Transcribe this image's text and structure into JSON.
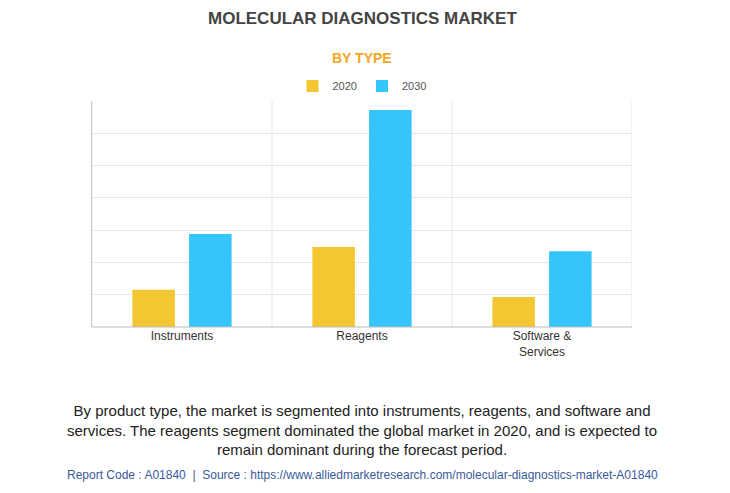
{
  "chart_data": {
    "type": "bar",
    "title": "MOLECULAR DIAGNOSTICS MARKET",
    "subtitle": "BY TYPE",
    "categories": [
      "Instruments",
      "Reagents",
      "Software & Services"
    ],
    "series": [
      {
        "name": "2020",
        "color": "#f4c732",
        "values": [
          1.15,
          2.48,
          0.93
        ]
      },
      {
        "name": "2030",
        "color": "#33c5fb",
        "values": [
          2.88,
          6.72,
          2.35
        ]
      }
    ],
    "ylim": [
      0,
      7
    ],
    "yticks": [
      0,
      1,
      2,
      3,
      4,
      5,
      6,
      7
    ],
    "grid": true,
    "tick_labels": "x",
    "legend": "top",
    "annotations": [
      [
        "By product type, the market is segmented into instruments, reagents, and software and",
        "services. The reagents segment dominated the global market in 2020, and is expected to",
        "remain dominant during the forecast period."
      ],
      [
        "Report Code : A01840  |  Source : https://www.alliedmarketresearch.com/molecular-diagnostics-market-A01840"
      ]
    ]
  }
}
